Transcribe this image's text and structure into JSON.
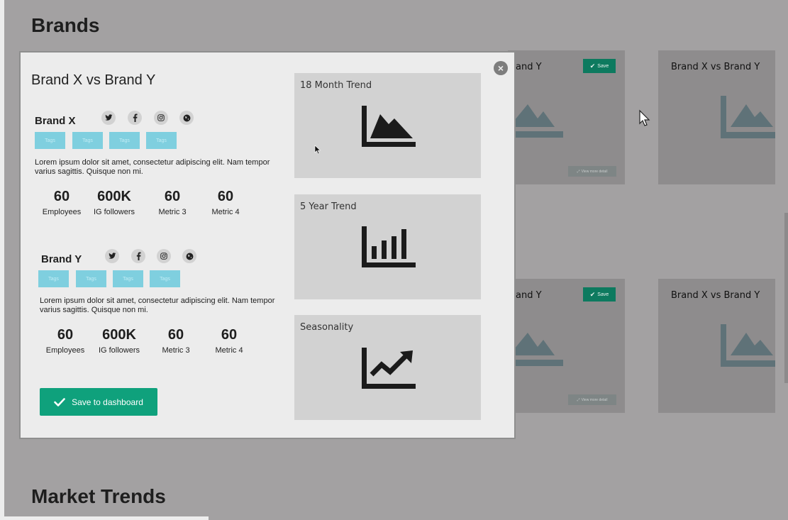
{
  "page": {
    "brands_heading": "Brands",
    "market_heading": "Market Trends"
  },
  "background_cards": [
    {
      "title": "and Y",
      "save_label": "Save",
      "detail_label": "View more detail"
    },
    {
      "title": "Brand X vs Brand Y"
    },
    {
      "title": "and Y",
      "save_label": "Save",
      "detail_label": "View more detail"
    },
    {
      "title": "Brand X vs Brand Y"
    }
  ],
  "modal": {
    "title": "Brand X vs Brand Y",
    "close_icon": "times-circle-icon",
    "brands": [
      {
        "name": "Brand X",
        "social_icons": [
          "twitter-icon",
          "facebook-icon",
          "instagram-icon",
          "globe-icon"
        ],
        "tags": [
          "Tags",
          "Tags",
          "Tags",
          "Tags"
        ],
        "description": "Lorem ipsum dolor sit amet, consectetur adipiscing elit. Nam tempor varius sagittis. Quisque non mi.",
        "metrics": [
          {
            "value": "60",
            "label": "Employees"
          },
          {
            "value": "600K",
            "label": "IG followers"
          },
          {
            "value": "60",
            "label": "Metric 3"
          },
          {
            "value": "60",
            "label": "Metric 4"
          }
        ]
      },
      {
        "name": "Brand Y",
        "social_icons": [
          "twitter-icon",
          "facebook-icon",
          "instagram-icon",
          "globe-icon"
        ],
        "tags": [
          "Tags",
          "Tags",
          "Tags",
          "Tags"
        ],
        "description": "Lorem ipsum dolor sit amet, consectetur adipiscing elit. Nam tempor varius sagittis. Quisque non mi.",
        "metrics": [
          {
            "value": "60",
            "label": "Employees"
          },
          {
            "value": "600K",
            "label": "IG followers"
          },
          {
            "value": "60",
            "label": "Metric 3"
          },
          {
            "value": "60",
            "label": "Metric 4"
          }
        ]
      }
    ],
    "save_button_label": "Save to dashboard",
    "trend_cards": [
      {
        "title": "18 Month Trend",
        "icon": "area-chart-icon"
      },
      {
        "title": "5 Year Trend",
        "icon": "bar-chart-icon"
      },
      {
        "title": "Seasonality",
        "icon": "line-chart-icon"
      }
    ]
  },
  "colors": {
    "overlay": "#a3a1a2",
    "modal_bg": "#ececec",
    "accent_green": "#0fa17c",
    "tag_cyan": "#7fcfdf",
    "chart_panel": "#d2d2d2"
  }
}
